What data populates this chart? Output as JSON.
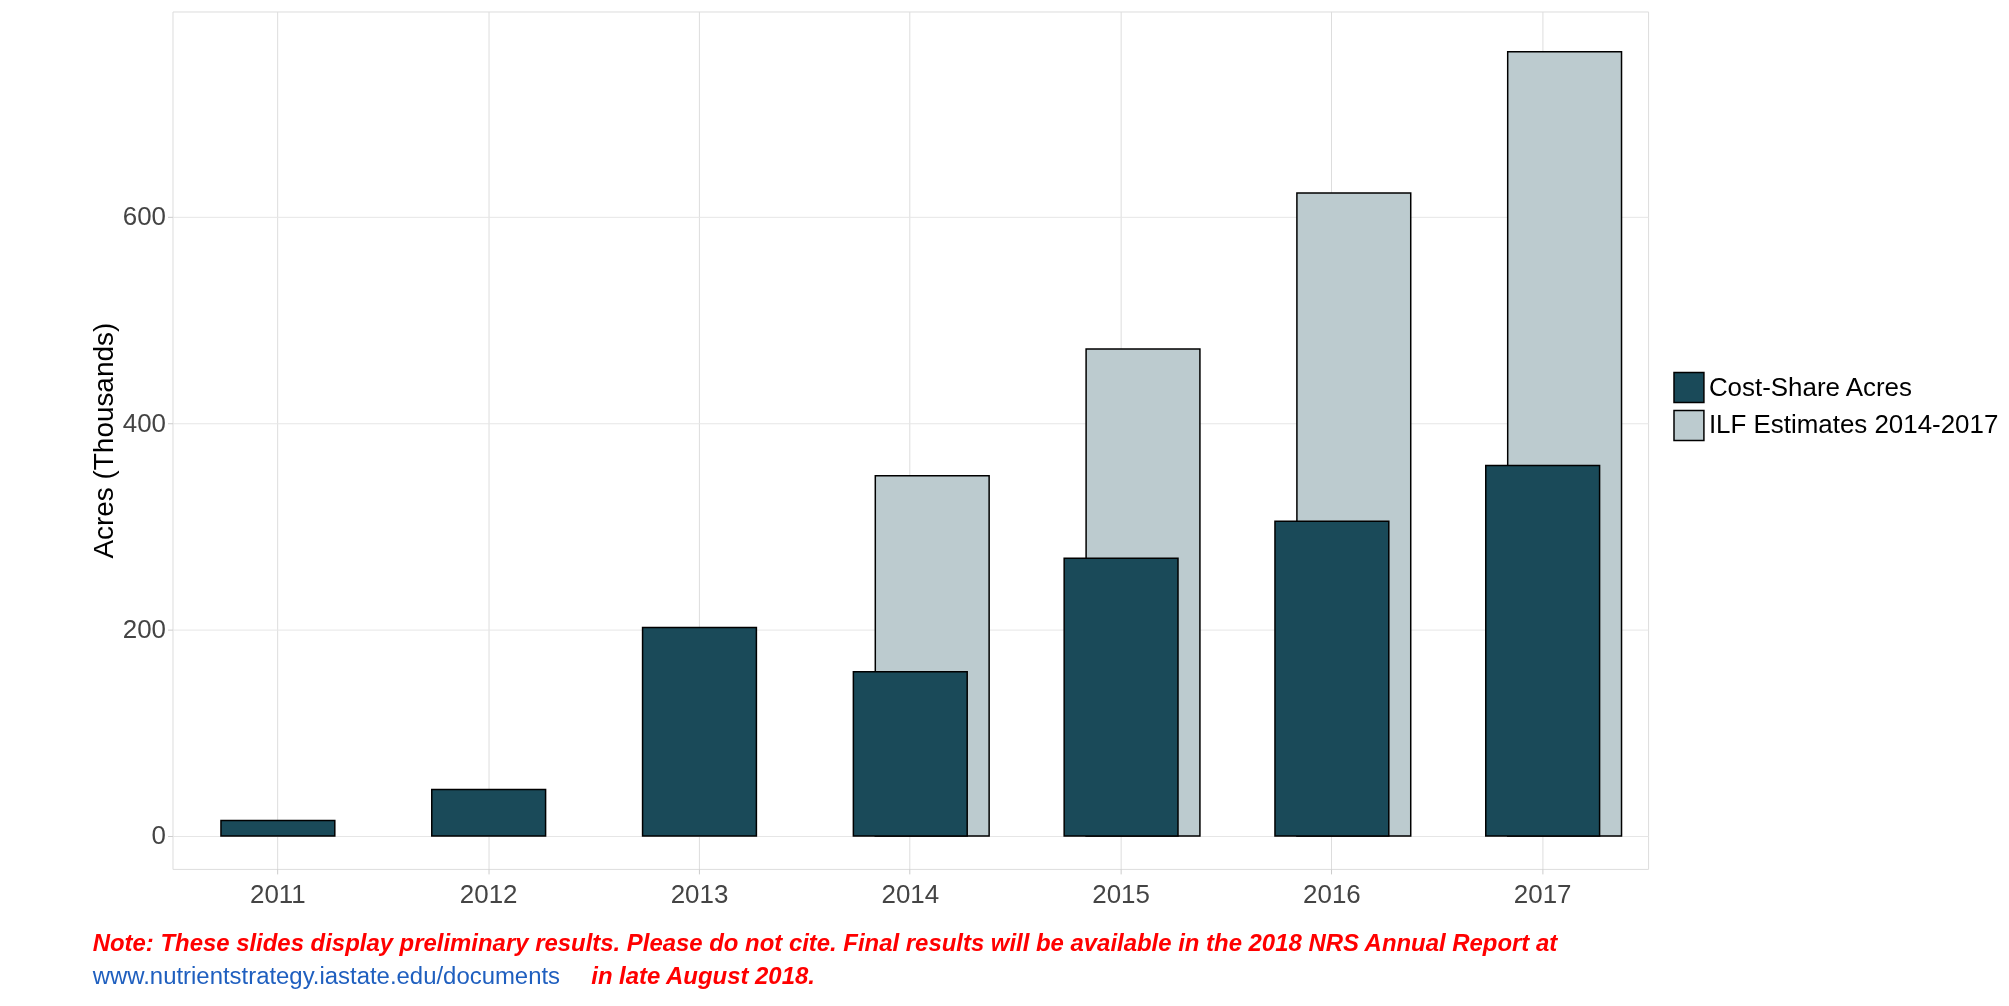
{
  "chart_data": {
    "type": "bar",
    "ylabel": "Acres (Thousands)",
    "categories": [
      "2011",
      "2012",
      "2013",
      "2014",
      "2015",
      "2016",
      "2017"
    ],
    "series": [
      {
        "name": "ILF Estimates 2014-2017",
        "color": "#bccbcf",
        "values": [
          null,
          null,
          null,
          349,
          472,
          623,
          760
        ]
      },
      {
        "name": "Cost-Share Acres",
        "color": "#1a4a59",
        "values": [
          15,
          45,
          202,
          159,
          269,
          305,
          359
        ]
      }
    ],
    "ylim": [
      -32,
      799
    ],
    "yticks": [
      0,
      200,
      400,
      600
    ],
    "grid": true,
    "legend": "right",
    "annotations": [
      "Note: These slides display preliminary results. Please do not cite. Final results will be available in the 2018 NRS Annual Report at",
      "www.nutrientstrategy.iastate.edu/documents",
      "in late August 2018."
    ]
  }
}
